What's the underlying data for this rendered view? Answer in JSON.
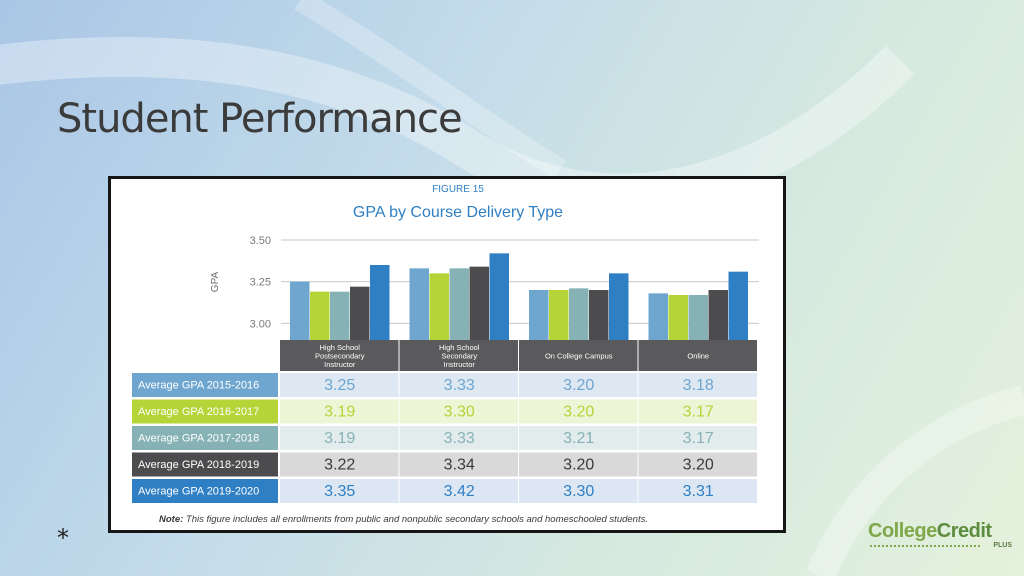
{
  "slide": {
    "title": "Student Performance",
    "footer_marker": "*"
  },
  "logo": {
    "word1": "College",
    "word2": "Credit",
    "plus": "PLUS",
    "colors": [
      "#7fa84a",
      "#5c8c3d"
    ]
  },
  "chart_data": {
    "type": "bar",
    "figure_label": "FIGURE 15",
    "title": "GPA by Course Delivery Type",
    "ylabel": "GPA",
    "ylim": [
      2.9,
      3.5
    ],
    "yticks": [
      3.0,
      3.25,
      3.5
    ],
    "ytick_labels": [
      "3.00",
      "3.25",
      "3.50"
    ],
    "grid": true,
    "legend": "table-below",
    "categories": [
      [
        "High School",
        "Postsecondary",
        "Instructor"
      ],
      [
        "High School",
        "Secondary",
        "Instructor"
      ],
      [
        "On College Campus"
      ],
      [
        "Online"
      ]
    ],
    "series": [
      {
        "name": "Average GPA 2015-2016",
        "color": "#6fa6cf",
        "row_bg": "#dde8f3",
        "values": [
          3.25,
          3.33,
          3.2,
          3.18
        ],
        "labels": [
          "3.25",
          "3.33",
          "3.20",
          "3.18"
        ]
      },
      {
        "name": "Average GPA 2016-2017",
        "color": "#b4d438",
        "row_bg": "#eef5d6",
        "values": [
          3.19,
          3.3,
          3.2,
          3.17
        ],
        "labels": [
          "3.19",
          "3.30",
          "3.20",
          "3.17"
        ]
      },
      {
        "name": "Average GPA 2017-2018",
        "color": "#86b2b5",
        "row_bg": "#e2ecec",
        "values": [
          3.19,
          3.33,
          3.21,
          3.17
        ],
        "labels": [
          "3.19",
          "3.33",
          "3.21",
          "3.17"
        ]
      },
      {
        "name": "Average GPA 2018-2019",
        "color": "#4c4c4e",
        "row_bg": "#d9d9d9",
        "values": [
          3.22,
          3.34,
          3.2,
          3.2
        ],
        "labels": [
          "3.22",
          "3.34",
          "3.20",
          "3.20"
        ]
      },
      {
        "name": "Average GPA 2019-2020",
        "color": "#2f7fc4",
        "row_bg": "#dce7f3",
        "values": [
          3.35,
          3.42,
          3.3,
          3.31
        ],
        "labels": [
          "3.35",
          "3.42",
          "3.30",
          "3.31"
        ]
      }
    ],
    "note_bold": "Note:",
    "note": " This figure includes all enrollments from public and nonpublic secondary schools and homeschooled students."
  }
}
